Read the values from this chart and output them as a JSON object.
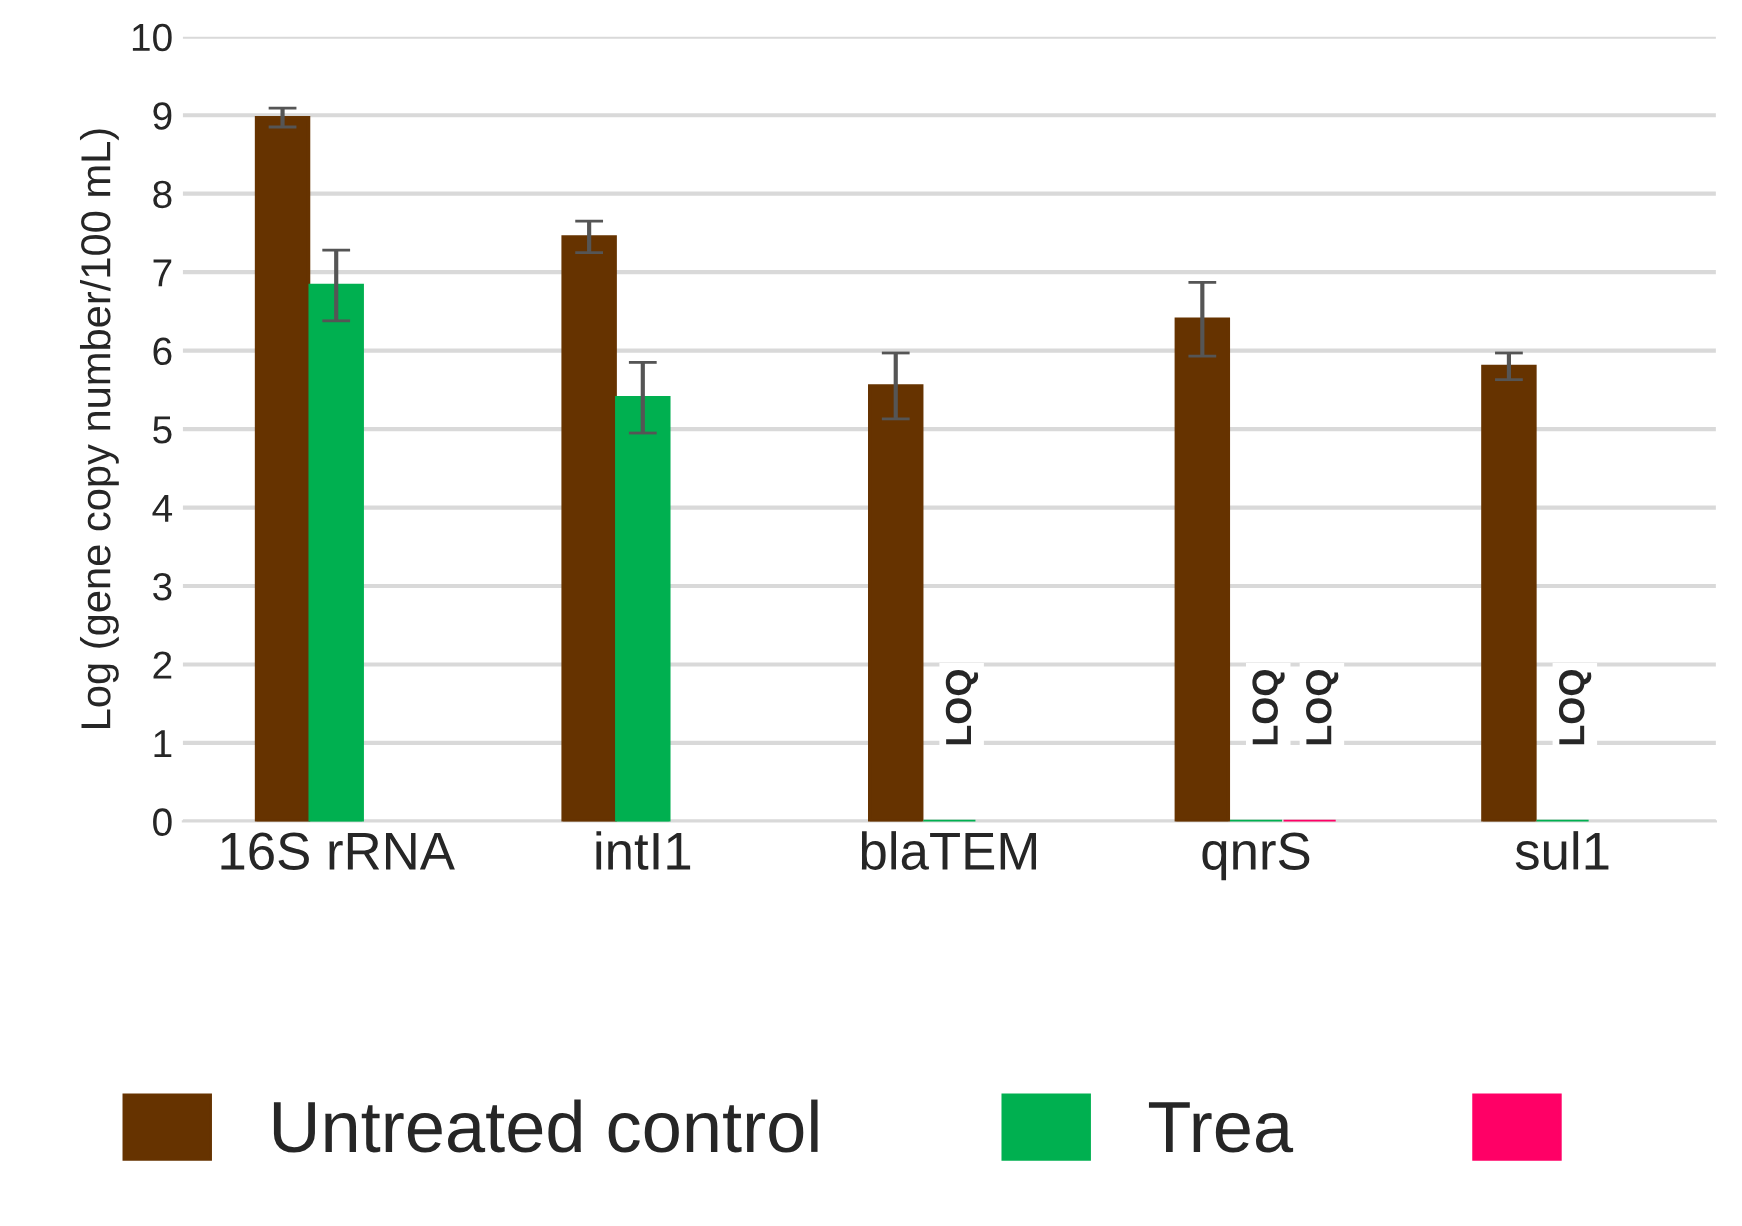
{
  "chart_data": {
    "type": "bar",
    "ylabel": "Log (gene copy number/100 mL)",
    "categories": [
      "16S rRNA",
      "intI1",
      "blaTEM",
      "qnrS",
      "sul1"
    ],
    "series": [
      {
        "name": "Untreated control",
        "color": "#663300",
        "values": [
          8.97,
          7.45,
          5.55,
          6.4,
          5.8
        ],
        "errors": [
          0.12,
          0.2,
          0.42,
          0.47,
          0.17
        ]
      },
      {
        "name": "Trea",
        "color": "#00b050",
        "values": [
          6.83,
          5.4,
          0,
          0,
          0
        ],
        "errors": [
          0.45,
          0.45,
          null,
          null,
          null
        ],
        "value_labels": [
          null,
          null,
          "LOQ",
          "LOQ",
          "LOQ"
        ]
      },
      {
        "color": "#ff0066",
        "values": [
          null,
          null,
          null,
          0,
          null
        ],
        "value_labels": [
          null,
          null,
          null,
          "LOQ",
          null
        ]
      }
    ],
    "ylim": [
      0,
      10
    ],
    "yticks": [
      0,
      1,
      2,
      3,
      4,
      5,
      6,
      7,
      8,
      9,
      10
    ],
    "grid": "y",
    "legend": "bottom"
  }
}
